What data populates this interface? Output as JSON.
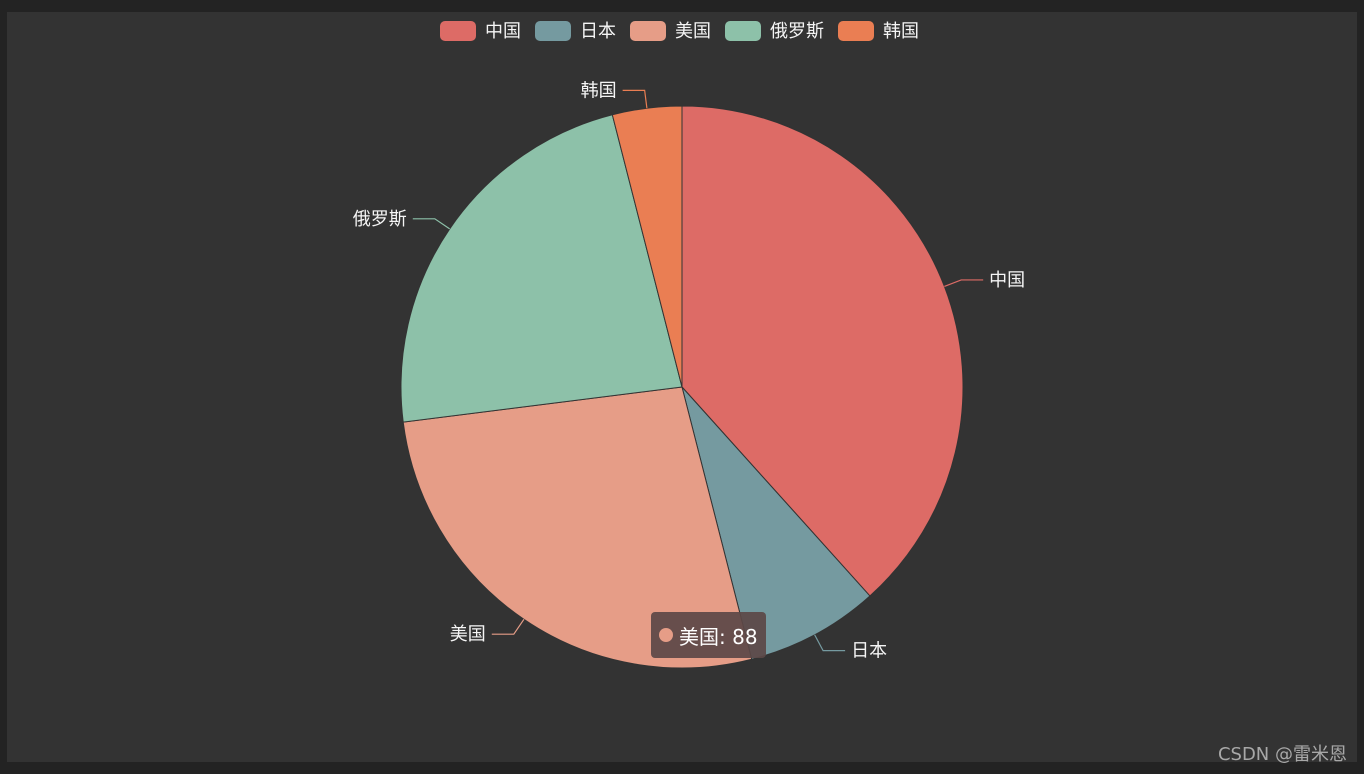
{
  "chart_data": {
    "type": "pie",
    "title": "",
    "categories": [
      "中国",
      "日本",
      "美国",
      "俄罗斯",
      "韩国"
    ],
    "values": [
      125,
      25,
      88,
      75,
      13
    ],
    "colors": [
      "#dd6b66",
      "#759aa0",
      "#e69d87",
      "#8dc1a9",
      "#ea7e53"
    ],
    "legend_position": "top-center",
    "labels_outside": true
  },
  "tooltip": {
    "series_name": "美国",
    "value": "88",
    "text": "美国: 88",
    "color": "#e69d87"
  },
  "watermark": {
    "text": "CSDN @雷米恩"
  }
}
